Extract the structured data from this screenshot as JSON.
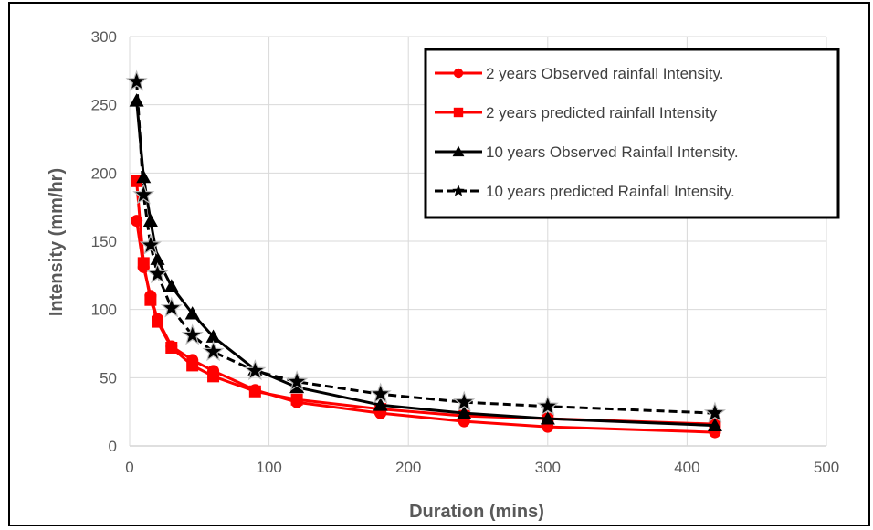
{
  "chart_data": {
    "type": "line",
    "title": "",
    "xlabel": "Duration (mins)",
    "ylabel": "Intensity (mm/hr)",
    "xlim": [
      0,
      500
    ],
    "ylim": [
      0,
      300
    ],
    "x_ticks": [
      0,
      100,
      200,
      300,
      400,
      500
    ],
    "y_ticks": [
      0,
      50,
      100,
      150,
      200,
      250,
      300
    ],
    "grid": "vertical and horizontal major gridlines",
    "legend_position": "top-right",
    "series": [
      {
        "name": "2 years Observed rainfall Intensity.",
        "color": "#ff0000",
        "marker": "circle",
        "line": "solid",
        "x": [
          5,
          10,
          15,
          20,
          30,
          45,
          60,
          90,
          120,
          180,
          240,
          300,
          420
        ],
        "y": [
          165,
          131,
          110,
          93,
          73,
          63,
          55,
          41,
          32,
          24,
          18,
          14,
          10
        ]
      },
      {
        "name": "2 years predicted rainfall Intensity",
        "color": "#ff0000",
        "marker": "square",
        "line": "solid",
        "x": [
          5,
          10,
          15,
          20,
          30,
          45,
          60,
          90,
          120,
          180,
          240,
          300,
          420
        ],
        "y": [
          194,
          134,
          107,
          91,
          72,
          59,
          51,
          40,
          34,
          27,
          22,
          20,
          16
        ]
      },
      {
        "name": "10 years Observed Rainfall Intensity.",
        "color": "#000000",
        "marker": "triangle",
        "line": "solid",
        "x": [
          5,
          10,
          15,
          20,
          30,
          45,
          60,
          90,
          120,
          180,
          240,
          300,
          420
        ],
        "y": [
          253,
          197,
          165,
          137,
          117,
          97,
          80,
          56,
          43,
          30,
          24,
          20,
          15
        ]
      },
      {
        "name": "10 years predicted Rainfall Intensity.",
        "color": "#000000",
        "marker": "star",
        "line": "dashed",
        "x": [
          5,
          10,
          15,
          20,
          30,
          45,
          60,
          90,
          120,
          180,
          240,
          300,
          420
        ],
        "y": [
          267,
          184,
          147,
          126,
          101,
          81,
          69,
          55,
          47,
          38,
          32,
          29,
          24
        ]
      }
    ]
  }
}
